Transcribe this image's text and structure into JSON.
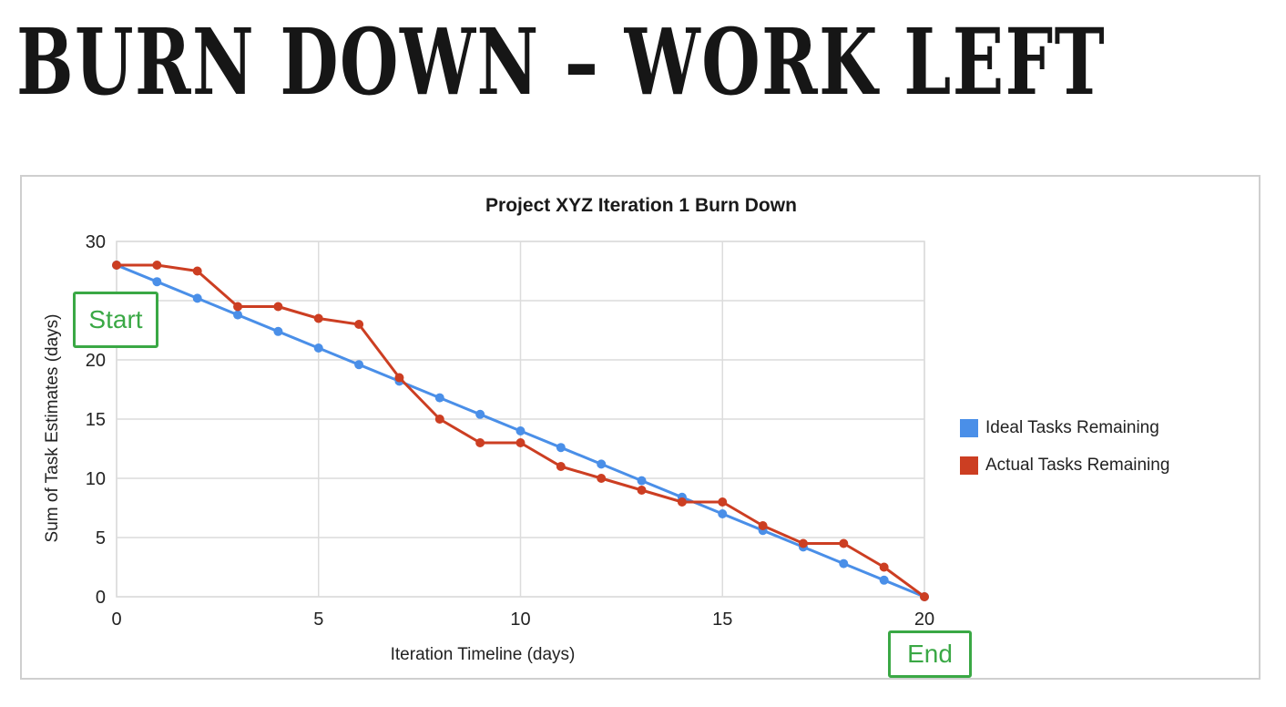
{
  "slide": {
    "title": "BURN DOWN – WORK LEFT"
  },
  "colors": {
    "ideal": "#4a8fe8",
    "actual": "#cc3e22",
    "callout": "#3aa845",
    "grid": "#dcdcdc"
  },
  "callouts": {
    "start": "Start",
    "end": "End"
  },
  "chart_data": {
    "type": "line",
    "title": "Project XYZ Iteration 1 Burn Down",
    "xlabel": "Iteration Timeline (days)",
    "ylabel": "Sum of Task Estimates (days)",
    "xlim": [
      0,
      20
    ],
    "ylim": [
      0,
      30
    ],
    "x_ticks": [
      0,
      5,
      10,
      15,
      20
    ],
    "y_ticks": [
      0,
      5,
      10,
      15,
      20,
      25,
      30
    ],
    "grid": true,
    "legend_position": "right",
    "x": [
      0,
      1,
      2,
      3,
      4,
      5,
      6,
      7,
      8,
      9,
      10,
      11,
      12,
      13,
      14,
      15,
      16,
      17,
      18,
      19,
      20
    ],
    "series": [
      {
        "name": "Ideal Tasks Remaining",
        "values": [
          28,
          26.6,
          25.2,
          23.8,
          22.4,
          21,
          19.6,
          18.2,
          16.8,
          15.4,
          14,
          12.6,
          11.2,
          9.8,
          8.4,
          7,
          5.6,
          4.2,
          2.8,
          1.4,
          0
        ]
      },
      {
        "name": "Actual Tasks Remaining",
        "values": [
          28,
          28,
          27.5,
          24.5,
          24.5,
          23.5,
          23,
          18.5,
          15,
          13,
          13,
          11,
          10,
          9,
          8,
          8,
          6,
          4.5,
          4.5,
          2.5,
          0
        ]
      }
    ]
  }
}
